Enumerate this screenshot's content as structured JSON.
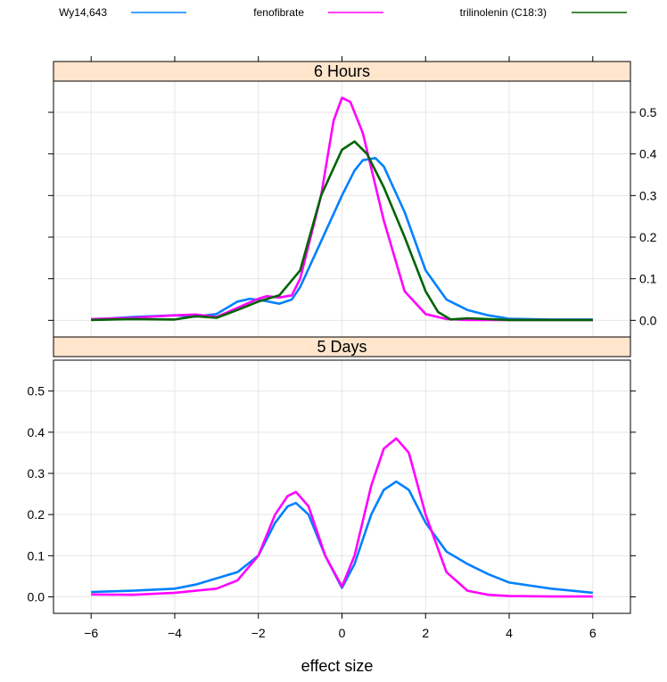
{
  "chart_data": {
    "type": "line",
    "xlabel": "effect size",
    "xlim": [
      -6.9,
      6.9
    ],
    "ylim": [
      -0.04,
      0.575
    ],
    "x_ticks": [
      -6,
      -4,
      -2,
      0,
      2,
      4,
      6
    ],
    "x_tick_labels": [
      "−6",
      "−4",
      "−2",
      "0",
      "2",
      "4",
      "6"
    ],
    "y_ticks": [
      0.0,
      0.1,
      0.2,
      0.3,
      0.4,
      0.5
    ],
    "y_tick_labels": [
      "0.0",
      "0.1",
      "0.2",
      "0.3",
      "0.4",
      "0.5"
    ],
    "grid": true,
    "legend_position": "top",
    "legend": [
      {
        "name": "Wy14,643",
        "color": "#0080ff"
      },
      {
        "name": "fenofibrate",
        "color": "#ff00ff"
      },
      {
        "name": "trilinolenin (C18:3)",
        "color": "#006400"
      }
    ],
    "strip_color": "#ffe5cc",
    "panels": [
      {
        "strip": "6 Hours",
        "series": [
          {
            "name": "Wy14,643",
            "color": "#0080ff",
            "x": [
              -6,
              -5,
              -4,
              -3.5,
              -3,
              -2.5,
              -2.2,
              -1.8,
              -1.5,
              -1.2,
              -1,
              -0.5,
              0,
              0.3,
              0.5,
              0.8,
              1,
              1.5,
              2,
              2.5,
              3,
              3.5,
              4,
              5,
              6
            ],
            "y": [
              0.002,
              0.008,
              0.012,
              0.009,
              0.015,
              0.045,
              0.052,
              0.046,
              0.04,
              0.05,
              0.08,
              0.19,
              0.3,
              0.36,
              0.385,
              0.39,
              0.37,
              0.26,
              0.12,
              0.05,
              0.025,
              0.012,
              0.004,
              0.002,
              0.002
            ]
          },
          {
            "name": "fenofibrate",
            "color": "#ff00ff",
            "x": [
              -6,
              -5,
              -4,
              -3.5,
              -3,
              -2.5,
              -2,
              -1.8,
              -1.5,
              -1.2,
              -1,
              -0.5,
              -0.2,
              0,
              0.2,
              0.5,
              1,
              1.5,
              2,
              2.5,
              3,
              3.5,
              4,
              5,
              6
            ],
            "y": [
              0.003,
              0.006,
              0.012,
              0.014,
              0.008,
              0.03,
              0.052,
              0.058,
              0.055,
              0.06,
              0.1,
              0.3,
              0.48,
              0.535,
              0.525,
              0.45,
              0.24,
              0.07,
              0.015,
              0.003,
              0.001,
              0.001,
              0.001,
              0.001,
              0.001
            ]
          },
          {
            "name": "trilinolenin (C18:3)",
            "color": "#006400",
            "x": [
              -6,
              -5,
              -4,
              -3.5,
              -3,
              -2.5,
              -2,
              -1.5,
              -1,
              -0.5,
              0,
              0.3,
              0.6,
              1,
              1.5,
              2,
              2.3,
              2.6,
              3,
              3.5,
              4,
              5,
              6
            ],
            "y": [
              0.001,
              0.003,
              0.002,
              0.01,
              0.006,
              0.025,
              0.045,
              0.06,
              0.12,
              0.3,
              0.41,
              0.43,
              0.4,
              0.32,
              0.2,
              0.07,
              0.02,
              0.002,
              0.005,
              0.003,
              0.001,
              0.001,
              0.001
            ]
          }
        ]
      },
      {
        "strip": "5 Days",
        "series": [
          {
            "name": "Wy14,643",
            "color": "#0080ff",
            "x": [
              -6,
              -5,
              -4,
              -3.5,
              -3,
              -2.5,
              -2,
              -1.6,
              -1.3,
              -1.1,
              -0.8,
              -0.4,
              0,
              0.3,
              0.7,
              1,
              1.3,
              1.6,
              2,
              2.5,
              3,
              3.5,
              4,
              5,
              6
            ],
            "y": [
              0.012,
              0.015,
              0.02,
              0.03,
              0.045,
              0.06,
              0.1,
              0.18,
              0.22,
              0.228,
              0.2,
              0.1,
              0.022,
              0.08,
              0.2,
              0.26,
              0.28,
              0.26,
              0.18,
              0.11,
              0.08,
              0.055,
              0.035,
              0.02,
              0.01
            ]
          },
          {
            "name": "fenofibrate",
            "color": "#ff00ff",
            "x": [
              -6,
              -5,
              -4,
              -3,
              -2.5,
              -2,
              -1.6,
              -1.3,
              -1.1,
              -0.8,
              -0.4,
              0,
              0.3,
              0.7,
              1,
              1.3,
              1.6,
              2,
              2.5,
              3,
              3.5,
              4,
              5,
              6
            ],
            "y": [
              0.006,
              0.005,
              0.01,
              0.02,
              0.04,
              0.1,
              0.2,
              0.245,
              0.255,
              0.22,
              0.1,
              0.025,
              0.1,
              0.27,
              0.36,
              0.385,
              0.35,
              0.2,
              0.06,
              0.015,
              0.005,
              0.002,
              0.001,
              0.001
            ]
          }
        ]
      }
    ]
  }
}
